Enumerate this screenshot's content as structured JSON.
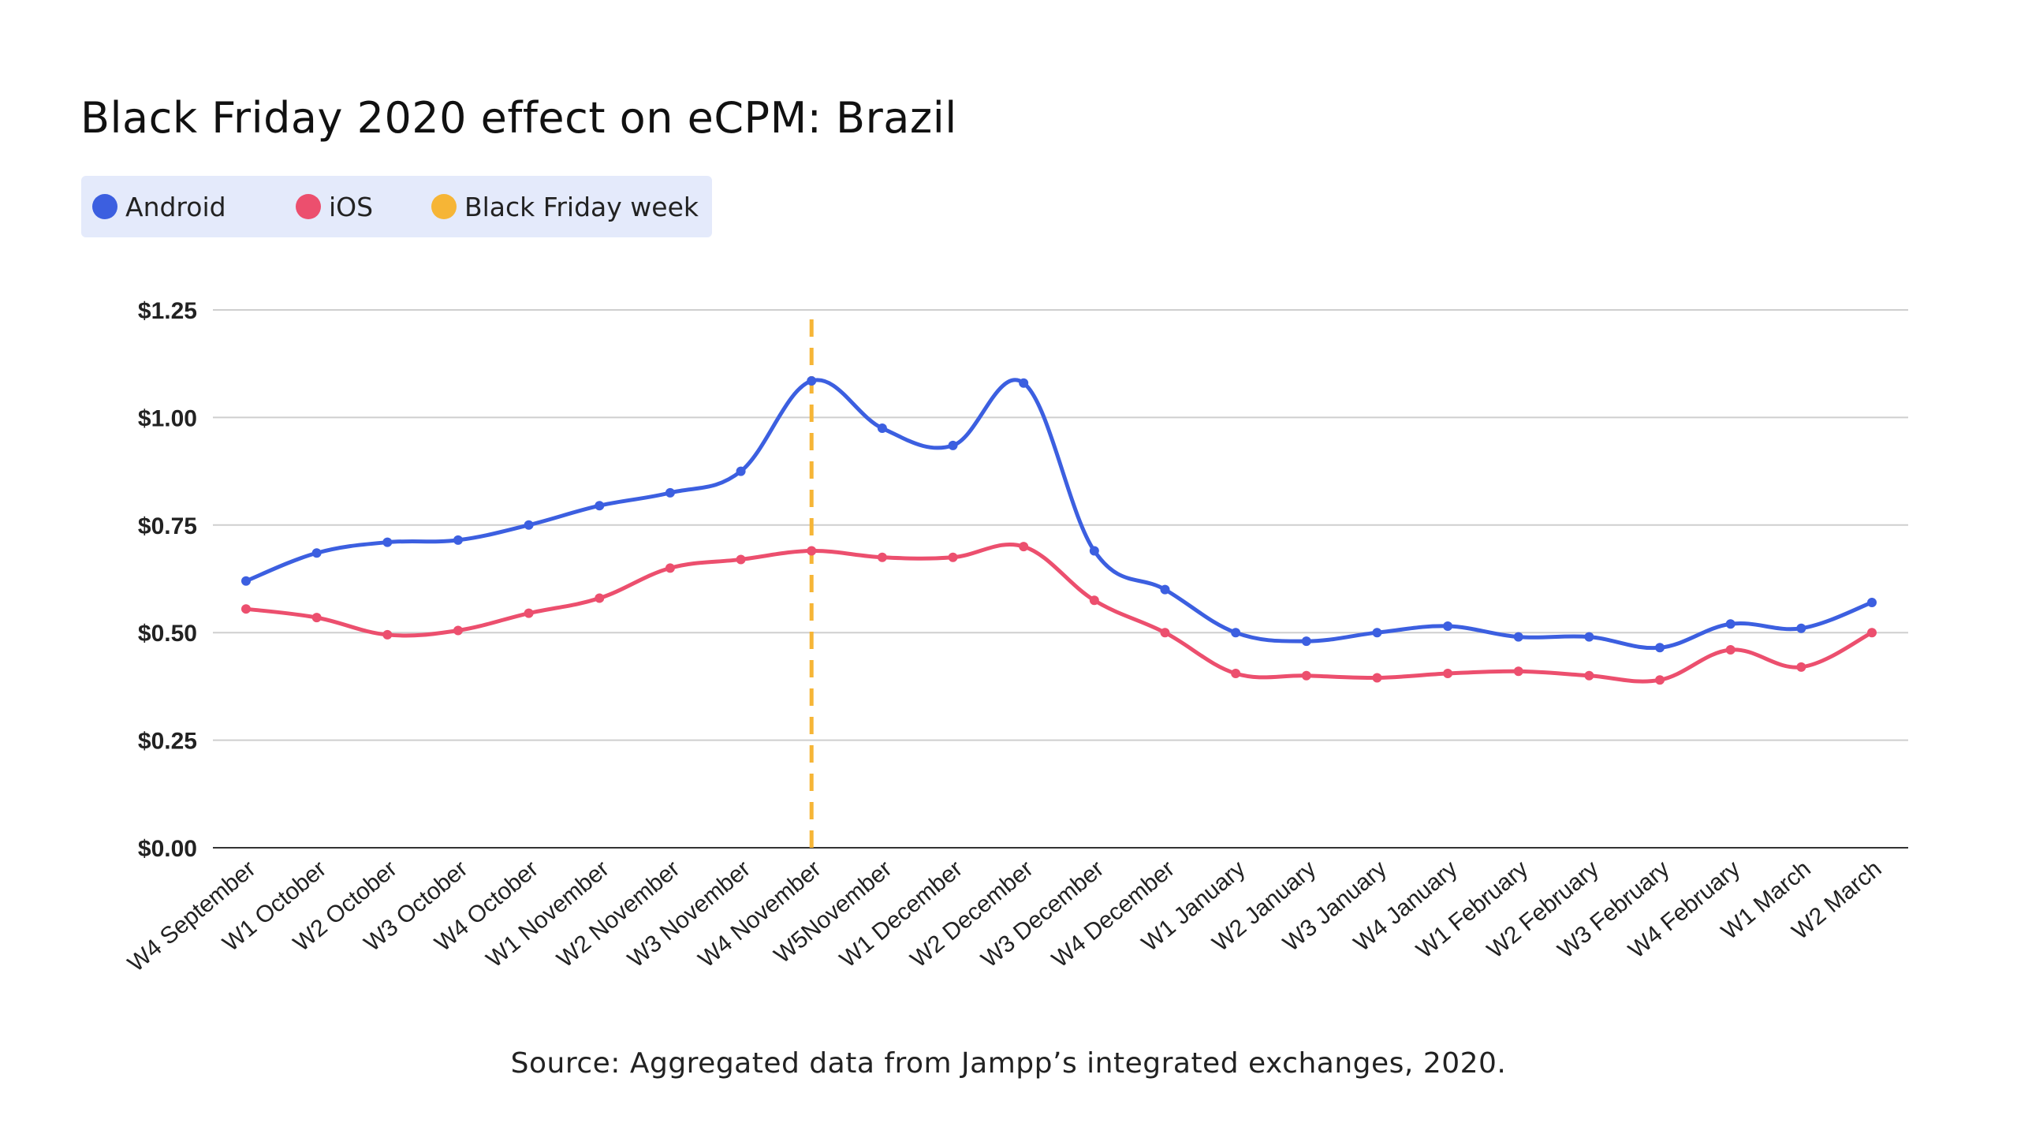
{
  "chart_data": {
    "type": "line",
    "title": "Black Friday 2020 effect on eCPM: Brazil",
    "xlabel": "",
    "ylabel": "",
    "categories": [
      "W4 September",
      "W1 October",
      "W2 October",
      "W3 October",
      "W4 October",
      "W1 November",
      "W2 November",
      "W3 November",
      "W4 November",
      "W5November",
      "W1 December",
      "W2 December",
      "W3 December",
      "W4 December",
      "W1 January",
      "W2 January",
      "W3 January",
      "W4 January",
      "W1 February",
      "W2 February",
      "W3 February",
      "W4 February",
      "W1 March",
      "W2 March"
    ],
    "series": [
      {
        "name": "Android",
        "color": "#3c5fe0",
        "values": [
          0.62,
          0.685,
          0.71,
          0.715,
          0.75,
          0.795,
          0.825,
          0.875,
          1.085,
          0.975,
          0.935,
          1.08,
          0.69,
          0.6,
          0.5,
          0.48,
          0.5,
          0.515,
          0.49,
          0.49,
          0.465,
          0.52,
          0.51,
          0.57
        ]
      },
      {
        "name": "iOS",
        "color": "#ec4f6e",
        "values": [
          0.555,
          0.535,
          0.495,
          0.505,
          0.545,
          0.58,
          0.65,
          0.67,
          0.69,
          0.675,
          0.675,
          0.7,
          0.575,
          0.5,
          0.405,
          0.4,
          0.395,
          0.405,
          0.41,
          0.4,
          0.39,
          0.46,
          0.42,
          0.5
        ]
      }
    ],
    "annotation": {
      "name": "Black Friday week",
      "category": "W4 November",
      "color": "#f6b536",
      "style": "dashed vertical line"
    },
    "ylim": [
      0,
      1.25
    ],
    "yticks": [
      0,
      0.25,
      0.5,
      0.75,
      1.0,
      1.25
    ],
    "ytick_labels": [
      "$0.00",
      "$0.25",
      "$0.50",
      "$0.75",
      "$1.00",
      "$1.25"
    ],
    "grid": true,
    "legend_position": "top-left"
  },
  "legend": {
    "items": [
      {
        "label": "Android",
        "color": "#3c5fe0"
      },
      {
        "label": "iOS",
        "color": "#ec4f6e"
      },
      {
        "label": "Black Friday week",
        "color": "#f6b536"
      }
    ]
  },
  "source": "Source: Aggregated data from Jampp’s integrated exchanges, 2020."
}
